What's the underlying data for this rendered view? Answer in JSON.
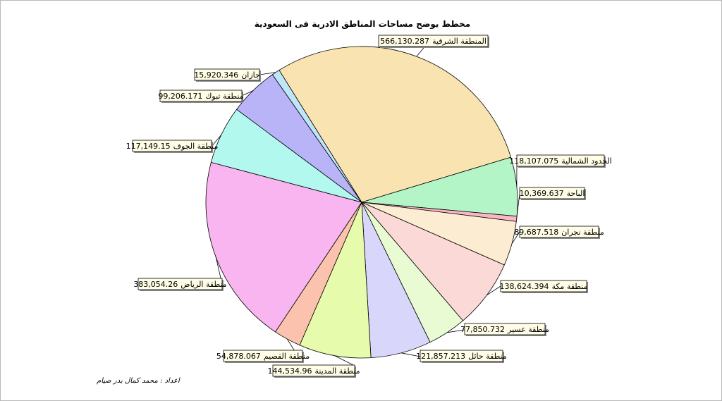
{
  "chart_data": {
    "type": "pie",
    "title": "مخطط يوضح مساحات المناطق الادرية فى السعودية",
    "credit": "اعداد : محمد كمال بدر صيام",
    "slices": [
      {
        "name": "المنطقة الشرقية",
        "value": "566,130.287",
        "color": "#f9e3b0"
      },
      {
        "name": "الحدود الشمالية",
        "value": "118,107.075",
        "color": "#b4f5c8"
      },
      {
        "name": "الباحة",
        "value": "10,369.637",
        "color": "#fbb7c6"
      },
      {
        "name": "منطقة نجران",
        "value": "89,687.518",
        "color": "#fbecd2"
      },
      {
        "name": "منطقة مكة",
        "value": "138,624.394",
        "color": "#fbd9d7"
      },
      {
        "name": "منطقة عسير",
        "value": "77,850.732",
        "color": "#e9fbd2"
      },
      {
        "name": "منطقة حائل",
        "value": "121,857.213",
        "color": "#d9d6fb"
      },
      {
        "name": "منطقة المدينة",
        "value": "144,534.96",
        "color": "#e6fbac"
      },
      {
        "name": "منطقة القصيم",
        "value": "54,878.067",
        "color": "#fbc3ad"
      },
      {
        "name": "منطقة الرياض",
        "value": "383,054.26",
        "color": "#f8b5f0"
      },
      {
        "name": "منطقة الجوف",
        "value": "117,149.15",
        "color": "#b3f8ef"
      },
      {
        "name": "منطقة تبوك",
        "value": "99,206.171",
        "color": "#b9b4f8"
      },
      {
        "name": "جازان",
        "value": "15,920.346",
        "color": "#bfe6f8"
      }
    ]
  }
}
